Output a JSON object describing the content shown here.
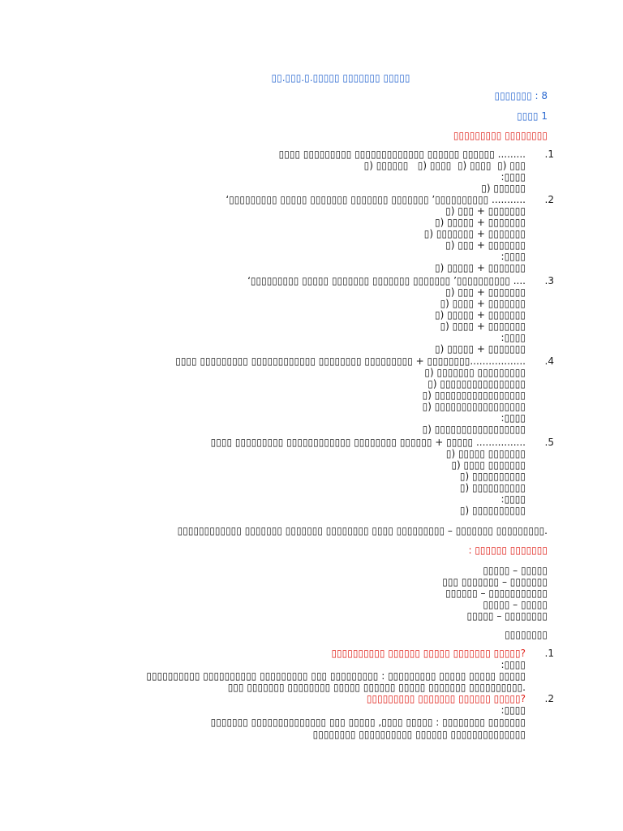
{
  "header": {
    "title": "▯▯.▯▯▯.▯.▯▯▯▯▯ ▯▯▯▯▯▯▯ ▯▯▯▯▯",
    "class_label": "▯▯▯▯▯▯▯ : 8",
    "lesson_label": "▯▯▯▯ 1"
  },
  "section1": {
    "heading": "▯▯▯▯▯▯▯▯▯ ▯▯▯▯▯▯▯▯",
    "questions": [
      {
        "number": ".1",
        "text": "▯▯▯▯ ▯▯▯▯▯▯▯▯▯ ▯▯▯▯▯▯▯▯▯▯▯▯▯ ▯▯▯▯▯▯ ▯▯▯▯▯▯ .........",
        "options": [
          "▯) ▯▯▯▯▯▯   ▯) ▯▯▯▯  ▯) ▯▯▯▯  ▯) ▯▯▯"
        ],
        "answer_label": ":▯▯▯▯",
        "answer": "▯) ▯▯▯▯▯▯"
      },
      {
        "number": ".2",
        "text": "‘▯▯▯▯▯▯▯▯▯ ▯▯▯▯▯ ▯▯▯▯▯▯▯ ▯▯▯▯▯▯▯ ▯▯▯▯▯▯▯ ’▯▯▯▯▯▯▯▯▯▯ ...........",
        "options": [
          "▯) ▯▯▯ + ▯▯▯▯▯▯▯",
          "▯) ▯▯▯▯▯ + ▯▯▯▯▯▯▯",
          "▯) ▯▯▯▯▯▯▯ + ▯▯▯▯▯▯▯",
          "▯) ▯▯▯ + ▯▯▯▯▯▯▯"
        ],
        "answer_label": ":▯▯▯▯",
        "answer": "▯) ▯▯▯▯▯ + ▯▯▯▯▯▯▯"
      },
      {
        "number": ".3",
        "text": "‘▯▯▯▯▯▯▯▯▯ ▯▯▯▯▯ ▯▯▯▯▯▯▯ ▯▯▯▯▯▯▯ ▯▯▯▯▯▯▯ ’▯▯▯▯▯▯▯▯▯▯ ....",
        "options": [
          "▯) ▯▯▯ + ▯▯▯▯▯▯▯",
          "▯) ▯▯▯▯ + ▯▯▯▯▯▯▯",
          "▯) ▯▯▯▯▯ + ▯▯▯▯▯▯▯",
          "▯) ▯▯▯▯ + ▯▯▯▯▯▯▯"
        ],
        "answer_label": ":▯▯▯▯",
        "answer": "▯) ▯▯▯▯▯ + ▯▯▯▯▯▯▯"
      },
      {
        "number": ".4",
        "text": "▯▯▯▯ ▯▯▯▯▯▯▯▯▯ ▯▯▯▯▯▯▯▯▯▯▯▯ ▯▯▯▯▯▯▯▯ ▯▯▯▯▯▯▯▯▯ + ▯▯▯▯▯▯▯▯..................",
        "options": [
          "▯) ▯▯▯▯▯▯▯ ▯▯▯▯▯▯▯▯▯",
          "▯) ▯▯▯▯▯▯▯▯▯▯▯▯▯▯▯▯",
          "▯) ▯▯▯▯▯▯▯▯▯▯▯▯▯▯▯▯▯",
          "▯) ▯▯▯▯▯▯▯▯▯▯▯▯▯▯▯▯▯"
        ],
        "answer_label": ":▯▯▯▯",
        "answer": "▯) ▯▯▯▯▯▯▯▯▯▯▯▯▯▯▯▯▯"
      },
      {
        "number": ".5",
        "text": "▯▯▯▯ ▯▯▯▯▯▯▯▯▯ ▯▯▯▯▯▯▯▯▯▯▯▯ ▯▯▯▯▯▯▯▯ ▯▯▯▯▯▯ + ▯▯▯▯▯ ................",
        "options": [
          "▯) ▯▯▯▯▯ ▯▯▯▯▯▯▯",
          "▯) ▯▯▯▯ ▯▯▯▯▯▯▯",
          "▯) ▯▯▯▯▯▯▯▯▯▯",
          "▯) ▯▯▯▯▯▯▯▯▯▯"
        ],
        "answer_label": ":▯▯▯▯",
        "answer": "▯) ▯▯▯▯▯▯▯▯▯▯"
      }
    ]
  },
  "intro_line": "▯▯▯▯▯▯▯▯▯▯▯▯ ▯▯▯▯▯▯▯ ▯▯▯▯▯▯▯ ▯▯▯▯▯▯▯▯ ▯▯▯▯ ▯▯▯▯▯▯▯▯▯ – ▯▯▯▯▯▯▯ ▯▯▯▯▯▯▯▯▯.",
  "section2": {
    "heading": ": ▯▯▯▯▯▯ ▯▯▯▯▯▯▯",
    "pairs": [
      "▯▯▯▯▯ – ▯▯▯▯▯",
      "▯▯▯ ▯▯▯▯▯▯▯ – ▯▯▯▯▯▯▯",
      "▯▯▯▯▯▯ – ▯▯▯▯▯▯▯▯▯▯▯",
      "▯▯▯▯▯ – ▯▯▯▯▯",
      "▯▯▯▯▯ – ▯▯▯▯▯▯▯▯"
    ]
  },
  "section3": {
    "heading": "▯▯▯▯▯▯▯▯",
    "questions": [
      {
        "number": ".1",
        "text": "▯▯▯▯▯▯▯▯▯▯ ▯▯▯▯▯▯ ▯▯▯▯▯ ▯▯▯▯▯▯▯ ▯▯▯▯▯?",
        "answer_label": ":▯▯▯▯",
        "answer_lines": [
          "▯▯▯▯▯▯▯▯▯▯ ▯▯▯▯▯▯▯▯▯▯ ▯▯▯▯▯▯▯▯▯ ▯▯▯ ▯▯▯▯▯▯▯▯▯ : ▯▯▯▯▯▯▯▯▯ ▯▯▯▯▯ ▯▯▯▯▯ ▯▯▯▯▯",
          "▯▯▯ ▯▯▯▯▯▯▯ ▯▯▯▯▯▯▯▯ ▯▯▯▯▯ ▯▯▯▯▯▯ ▯▯▯▯▯ ▯▯▯▯▯▯▯ ▯▯▯▯▯▯▯▯▯▯."
        ]
      },
      {
        "number": ".2",
        "text": "▯▯▯▯▯▯▯▯▯ ▯▯▯▯▯▯▯ ▯▯▯▯▯▯ ▯▯▯▯▯?",
        "answer_label": ":▯▯▯▯",
        "answer_lines": [
          "▯▯▯▯▯▯▯ ▯▯▯▯▯▯▯▯▯▯▯▯▯▯ ▯▯▯ ▯▯▯▯▯ ,▯▯▯▯ ▯▯▯▯▯ : ▯▯▯▯▯▯▯▯ ▯▯▯▯▯▯▯",
          "▯▯▯▯▯▯▯▯ ▯▯▯▯▯▯▯▯▯▯ ▯▯▯▯▯▯ ▯▯▯▯▯▯▯▯▯▯▯▯▯▯"
        ]
      }
    ]
  }
}
